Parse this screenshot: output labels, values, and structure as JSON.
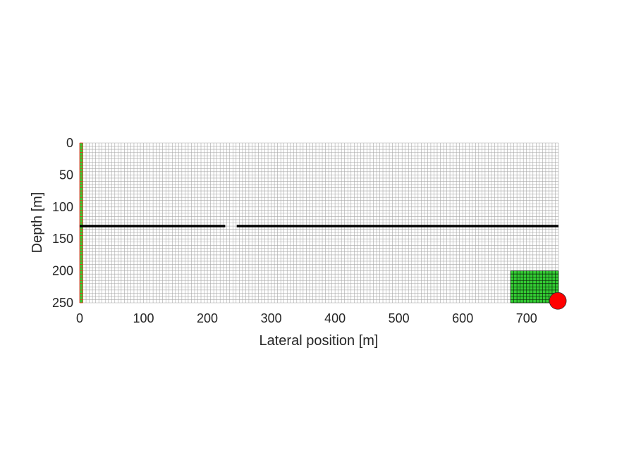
{
  "chart_data": {
    "type": "grid-diagram",
    "xlabel": "Lateral position [m]",
    "ylabel": "Depth [m]",
    "xlim": [
      0,
      750
    ],
    "ylim": [
      0,
      250
    ],
    "y_reversed": true,
    "xticks": [
      0,
      100,
      200,
      300,
      400,
      500,
      600,
      700
    ],
    "yticks": [
      0,
      50,
      100,
      150,
      200,
      250
    ],
    "grid": {
      "dx": 5,
      "dz": 5,
      "line_color": "#a8a8a8"
    },
    "barrier": {
      "depth": 130,
      "segments": [
        [
          0,
          228
        ],
        [
          246,
          750
        ]
      ],
      "color": "#000000"
    },
    "regions": [
      {
        "name": "left column",
        "x": [
          0,
          5
        ],
        "z": [
          0,
          250
        ],
        "color": "#33cc33",
        "line_color": "#ff2020"
      },
      {
        "name": "bottom right block",
        "x": [
          675,
          750
        ],
        "z": [
          200,
          250
        ],
        "color": "#33cc33",
        "line_color": "#0a2a0a"
      }
    ],
    "marker": {
      "x": 749,
      "z": 247,
      "color": "#ff0000",
      "edge": "#303030"
    }
  }
}
